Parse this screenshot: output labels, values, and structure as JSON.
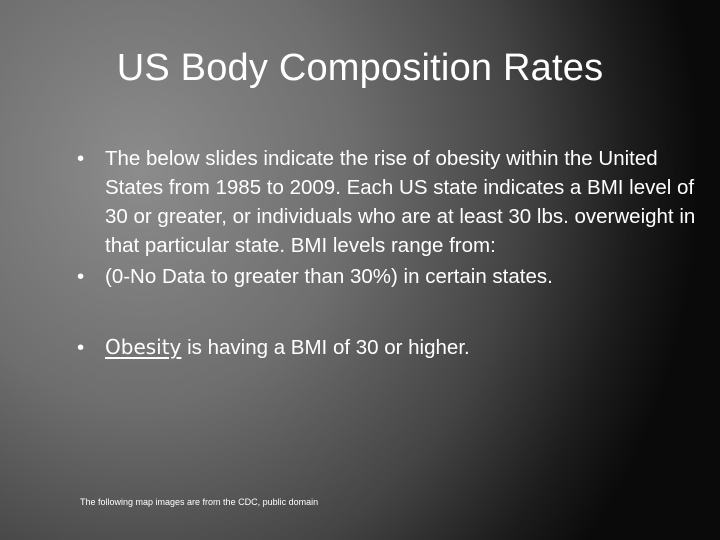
{
  "slide": {
    "title": "US Body Composition Rates",
    "bullet_char": "•",
    "bullets": [
      {
        "text": "The below slides indicate the rise of obesity within the United States from 1985 to 2009.  Each US state indicates a BMI level of 30 or greater, or individuals who are at least 30 lbs. overweight in that particular state.  BMI levels range from:"
      },
      {
        "text": "(0-No Data to greater than 30%) in certain states."
      },
      {
        "link_text": "Obesity",
        "text": " is having a BMI of 30 or higher."
      }
    ],
    "footnote": "The following map images are from the CDC, public domain"
  },
  "colors": {
    "background_light": "#8c8c8c",
    "background_dark": "#0a0a0a",
    "text": "#ffffff"
  }
}
